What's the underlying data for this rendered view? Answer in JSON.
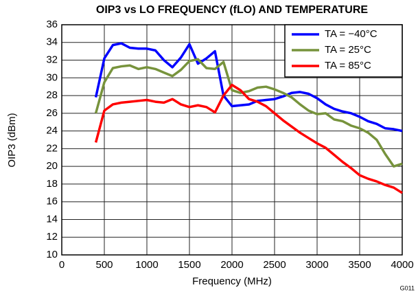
{
  "chart_data": {
    "type": "line",
    "title": "OIP3 vs LO FREQUENCY (fLO) AND TEMPERATURE",
    "xlabel": "Frequency (MHz)",
    "ylabel": "OIP3 (dBm)",
    "note": "G011",
    "x": [
      400,
      500,
      600,
      700,
      800,
      900,
      1000,
      1100,
      1200,
      1300,
      1400,
      1500,
      1600,
      1700,
      1800,
      1900,
      2000,
      2100,
      2200,
      2300,
      2400,
      2500,
      2600,
      2700,
      2800,
      2900,
      3000,
      3100,
      3200,
      3300,
      3400,
      3500,
      3600,
      3700,
      3800,
      3900,
      4000
    ],
    "series": [
      {
        "name": "TA = −40°C",
        "color": "#0000ff",
        "values": [
          27.8,
          32.2,
          33.7,
          33.9,
          33.4,
          33.3,
          33.3,
          33.1,
          32.0,
          31.2,
          32.3,
          33.8,
          31.6,
          32.2,
          33.0,
          28.0,
          26.8,
          26.9,
          27.0,
          27.4,
          27.5,
          27.6,
          27.9,
          28.3,
          28.4,
          28.2,
          27.7,
          27.0,
          26.5,
          26.2,
          26.0,
          25.6,
          25.1,
          24.8,
          24.3,
          24.2,
          24.0
        ]
      },
      {
        "name": "TA = 25°C",
        "color": "#77933c",
        "values": [
          26.0,
          29.5,
          31.1,
          31.3,
          31.4,
          31.0,
          31.2,
          31.0,
          30.6,
          30.2,
          30.9,
          31.9,
          32.1,
          31.1,
          31.0,
          31.8,
          28.6,
          28.3,
          28.5,
          28.9,
          29.0,
          28.7,
          28.3,
          27.8,
          27.0,
          26.3,
          25.9,
          26.0,
          25.3,
          25.1,
          24.6,
          24.3,
          23.8,
          23.0,
          21.4,
          20.0,
          20.3
        ]
      },
      {
        "name": "TA = 85°C",
        "color": "#ff0000",
        "values": [
          22.7,
          26.3,
          27.0,
          27.2,
          27.3,
          27.4,
          27.5,
          27.3,
          27.2,
          27.6,
          27.0,
          26.7,
          26.9,
          26.7,
          26.1,
          28.0,
          29.2,
          28.6,
          27.6,
          27.3,
          26.8,
          26.0,
          25.2,
          24.5,
          23.8,
          23.2,
          22.6,
          22.1,
          21.3,
          20.5,
          19.8,
          19.0,
          18.6,
          18.3,
          17.9,
          17.6,
          17.0
        ]
      }
    ],
    "xlim": [
      0,
      4000
    ],
    "xticks": [
      0,
      500,
      1000,
      1500,
      2000,
      2500,
      3000,
      3500,
      4000
    ],
    "ylim": [
      10,
      36
    ],
    "yticks": [
      10,
      12,
      14,
      16,
      18,
      20,
      22,
      24,
      26,
      28,
      30,
      32,
      34,
      36
    ],
    "grid": true,
    "legend": "upper right"
  }
}
